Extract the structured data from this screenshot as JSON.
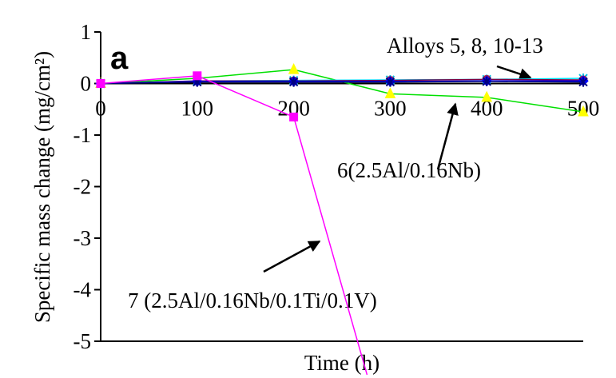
{
  "chart_data": {
    "type": "line",
    "panel_label": "a",
    "xlabel": "Time (h)",
    "ylabel": "Specific mass change (mg/cm²)",
    "x": [
      0,
      100,
      200,
      300,
      400,
      500
    ],
    "xlim": [
      0,
      500
    ],
    "xticks": [
      0,
      100,
      200,
      300,
      400,
      500
    ],
    "ylim": [
      -5,
      1
    ],
    "yticks": [
      -5,
      -4,
      -3,
      -2,
      -1,
      0,
      1
    ],
    "series": [
      {
        "color": "#00e000",
        "marker": "triangle",
        "marker_color": "#ffff00",
        "values": [
          0,
          0.1,
          0.27,
          -0.2,
          -0.27,
          -0.55
        ]
      },
      {
        "color": "#00e0ff",
        "marker": "x",
        "marker_color": "#00c0e0",
        "values": [
          0,
          0.05,
          0.06,
          0.07,
          0.08,
          0.1
        ]
      },
      {
        "color": "#800040",
        "marker": "circle",
        "marker_color": "#a02050",
        "values": [
          0,
          0.05,
          0.05,
          0.06,
          0.08,
          0.07
        ]
      },
      {
        "color": "#0000ff",
        "marker": "diamond",
        "marker_color": "#0000ff",
        "values": [
          0,
          0.04,
          0.04,
          0.04,
          0.05,
          0.05
        ]
      },
      {
        "color": "#000080",
        "marker": "star",
        "marker_color": "#000080",
        "values": [
          0,
          0.03,
          0.03,
          0.03,
          0.04,
          0.03
        ]
      },
      {
        "color": "#ff00ff",
        "marker": "square",
        "marker_color": "#ff00ff",
        "x": [
          0,
          100,
          200,
          276
        ],
        "values": [
          0,
          0.15,
          -0.65,
          -5.65
        ]
      }
    ],
    "annotations": [
      "Alloys 5, 8, 10-13",
      "6(2.5Al/0.16Nb)",
      "7 (2.5Al/0.16Nb/0.1Ti/0.1V)"
    ]
  }
}
